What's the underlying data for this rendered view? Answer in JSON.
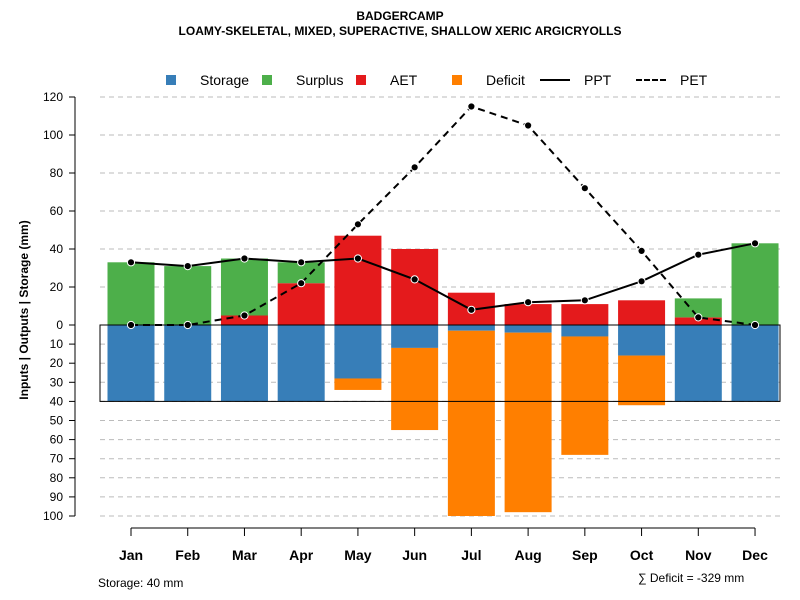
{
  "chart_data": {
    "type": "bar",
    "title": "BADGERCAMP",
    "subtitle": "LOAMY-SKELETAL, MIXED, SUPERACTIVE, SHALLOW XERIC ARGICRYOLLS",
    "ylabel": "Inputs | Outputs | Storage    (mm)",
    "categories": [
      "Jan",
      "Feb",
      "Mar",
      "Apr",
      "May",
      "Jun",
      "Jul",
      "Aug",
      "Sep",
      "Oct",
      "Nov",
      "Dec"
    ],
    "upper_ylim": [
      0,
      120
    ],
    "lower_ylim": [
      0,
      100
    ],
    "upper_ticks": [
      "120",
      "100",
      "80",
      "60",
      "40",
      "20",
      "0"
    ],
    "lower_ticks": [
      "10",
      "20",
      "30",
      "40",
      "50",
      "60",
      "70",
      "80",
      "90",
      "100"
    ],
    "legend": [
      {
        "label": "Storage",
        "color": "#377eb8",
        "kind": "box"
      },
      {
        "label": "Surplus",
        "color": "#4daf4a",
        "kind": "box"
      },
      {
        "label": "AET",
        "color": "#e41a1c",
        "kind": "box"
      },
      {
        "label": "Deficit",
        "color": "#ff7f00",
        "kind": "box"
      },
      {
        "label": "PPT",
        "color": "#000000",
        "kind": "solid"
      },
      {
        "label": "PET",
        "color": "#000000",
        "kind": "dashed"
      }
    ],
    "series": [
      {
        "name": "Surplus",
        "values": [
          33,
          31,
          30,
          11,
          0,
          0,
          0,
          0,
          0,
          0,
          10,
          43
        ]
      },
      {
        "name": "AET",
        "values": [
          0,
          0,
          5,
          22,
          47,
          40,
          17,
          11,
          11,
          13,
          4,
          0
        ]
      },
      {
        "name": "Storage",
        "values": [
          40,
          40,
          40,
          40,
          28,
          12,
          3,
          4,
          6,
          16,
          40,
          40
        ]
      },
      {
        "name": "Deficit",
        "values": [
          0,
          0,
          0,
          0,
          6,
          43,
          97,
          94,
          62,
          26,
          0,
          0
        ]
      },
      {
        "name": "PPT",
        "values": [
          33,
          31,
          35,
          33,
          35,
          24,
          8,
          12,
          13,
          23,
          37,
          43
        ]
      },
      {
        "name": "PET",
        "values": [
          0,
          0,
          5,
          22,
          53,
          83,
          115,
          105,
          72,
          39,
          4,
          0
        ]
      }
    ],
    "storage_capacity": 40
  },
  "footer": {
    "storage": "Storage: 40 mm",
    "deficit": "∑ Deficit = -329 mm"
  }
}
